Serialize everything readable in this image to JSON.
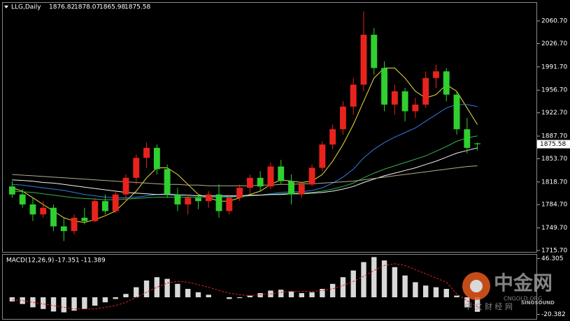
{
  "chart_data": [
    {
      "type": "candlestick",
      "title": "LLG,Daily",
      "open": [
        1812,
        1800,
        1785,
        1770,
        1780,
        1752,
        1745,
        1765,
        1760,
        1790,
        1775,
        1800,
        1825,
        1855,
        1870,
        1838,
        1800,
        1785,
        1795,
        1790,
        1800,
        1775,
        1795,
        1810,
        1825,
        1812,
        1842,
        1820,
        1800,
        1815,
        1840,
        1875,
        1898,
        1932,
        1965,
        2040,
        1990,
        1935,
        1955,
        1925,
        1935,
        1975,
        1985,
        1950,
        1898,
        1876.82
      ],
      "high": [
        1820,
        1808,
        1795,
        1790,
        1785,
        1765,
        1770,
        1780,
        1795,
        1800,
        1805,
        1830,
        1860,
        1878,
        1875,
        1845,
        1810,
        1800,
        1800,
        1805,
        1815,
        1800,
        1815,
        1830,
        1835,
        1848,
        1852,
        1830,
        1820,
        1845,
        1880,
        1905,
        1940,
        1975,
        2075,
        2050,
        2000,
        1965,
        1960,
        1945,
        1985,
        1995,
        1990,
        1955,
        1915,
        1878.07
      ],
      "low": [
        1795,
        1780,
        1760,
        1765,
        1745,
        1730,
        1740,
        1755,
        1758,
        1770,
        1772,
        1790,
        1815,
        1840,
        1830,
        1795,
        1775,
        1770,
        1778,
        1780,
        1765,
        1770,
        1790,
        1800,
        1805,
        1808,
        1815,
        1785,
        1795,
        1812,
        1835,
        1868,
        1890,
        1920,
        1955,
        1980,
        1925,
        1920,
        1910,
        1915,
        1930,
        1960,
        1940,
        1890,
        1862,
        1865.98
      ],
      "close": [
        1800,
        1785,
        1770,
        1780,
        1752,
        1745,
        1765,
        1760,
        1790,
        1775,
        1800,
        1825,
        1855,
        1870,
        1838,
        1800,
        1785,
        1795,
        1790,
        1800,
        1775,
        1795,
        1810,
        1825,
        1812,
        1842,
        1820,
        1800,
        1815,
        1840,
        1875,
        1898,
        1932,
        1965,
        2040,
        1990,
        1935,
        1955,
        1925,
        1935,
        1975,
        1985,
        1950,
        1898,
        1870,
        1875.58
      ],
      "up_color": "#e8231d",
      "down_color": "#2fd02f",
      "series": [
        {
          "color": "#f2e23a",
          "values": [
            1810,
            1805,
            1795,
            1785,
            1775,
            1765,
            1760,
            1758,
            1762,
            1768,
            1775,
            1790,
            1805,
            1825,
            1840,
            1840,
            1830,
            1815,
            1800,
            1795,
            1790,
            1790,
            1795,
            1800,
            1805,
            1815,
            1822,
            1820,
            1818,
            1820,
            1830,
            1850,
            1875,
            1905,
            1940,
            1975,
            1990,
            1990,
            1975,
            1955,
            1945,
            1950,
            1965,
            1955,
            1930,
            1905
          ]
        },
        {
          "color": "#2f7ee0",
          "values": [
            1815,
            1814,
            1812,
            1810,
            1808,
            1806,
            1803,
            1800,
            1798,
            1796,
            1795,
            1795,
            1796,
            1798,
            1800,
            1801,
            1800,
            1799,
            1798,
            1797,
            1796,
            1796,
            1797,
            1798,
            1799,
            1801,
            1803,
            1804,
            1804,
            1806,
            1810,
            1817,
            1826,
            1838,
            1855,
            1868,
            1878,
            1886,
            1893,
            1900,
            1910,
            1920,
            1930,
            1935,
            1935,
            1932
          ]
        },
        {
          "color": "#36b24c",
          "values": [
            1805,
            1804,
            1803,
            1801,
            1799,
            1797,
            1795,
            1794,
            1793,
            1792,
            1792,
            1793,
            1794,
            1795,
            1796,
            1796,
            1796,
            1796,
            1796,
            1796,
            1796,
            1797,
            1797,
            1798,
            1799,
            1800,
            1801,
            1802,
            1802,
            1803,
            1805,
            1808,
            1812,
            1817,
            1825,
            1832,
            1838,
            1843,
            1848,
            1853,
            1858,
            1865,
            1872,
            1880,
            1885,
            1888
          ]
        },
        {
          "color": "#f4f4f4",
          "values": [
            1822,
            1821,
            1820,
            1818,
            1817,
            1815,
            1813,
            1811,
            1809,
            1807,
            1805,
            1803,
            1802,
            1801,
            1800,
            1800,
            1799,
            1799,
            1798,
            1798,
            1798,
            1798,
            1798,
            1799,
            1799,
            1800,
            1800,
            1801,
            1801,
            1802,
            1803,
            1805,
            1808,
            1812,
            1818,
            1823,
            1828,
            1832,
            1836,
            1840,
            1845,
            1850,
            1856,
            1862,
            1866,
            1870
          ]
        },
        {
          "color": "#b9ac8c",
          "values": [
            1830,
            1829,
            1828,
            1827,
            1826,
            1825,
            1824,
            1823,
            1822,
            1821,
            1820,
            1819,
            1818,
            1817,
            1816,
            1815,
            1815,
            1814,
            1814,
            1813,
            1813,
            1813,
            1813,
            1813,
            1814,
            1814,
            1815,
            1815,
            1816,
            1816,
            1817,
            1818,
            1819,
            1820,
            1822,
            1824,
            1826,
            1828,
            1830,
            1832,
            1834,
            1836,
            1838,
            1840,
            1842,
            1843
          ]
        }
      ],
      "ylim": [
        1712.6,
        2088.0
      ],
      "yticks": [
        {
          "value": 2060.7,
          "label": "2060.70"
        },
        {
          "value": 2026.7,
          "label": "2026.70"
        },
        {
          "value": 1991.7,
          "label": "1991.70"
        },
        {
          "value": 1956.7,
          "label": "1956.70"
        },
        {
          "value": 1922.7,
          "label": "1922.70"
        },
        {
          "value": 1887.7,
          "label": "1887.70"
        },
        {
          "value": 1853.7,
          "label": "1853.70"
        },
        {
          "value": 1818.7,
          "label": "1818.70"
        },
        {
          "value": 1784.7,
          "label": "1784.70"
        },
        {
          "value": 1749.7,
          "label": "1749.70"
        },
        {
          "value": 1715.7,
          "label": "1715.70"
        }
      ],
      "watermark": {
        "logo": "中金网",
        "url": "CNGOLD.ORG",
        "tagline": "中 文 财 经 网",
        "brand": "SINOSOUND"
      }
    },
    {
      "type": "macd",
      "title": "MACD(12,26,9)",
      "histogram": [
        -5,
        -8,
        -12,
        -14,
        -17,
        -18,
        -16,
        -14,
        -10,
        -6,
        -2,
        4,
        12,
        20,
        24,
        22,
        16,
        10,
        6,
        3,
        0,
        -2,
        -1,
        2,
        5,
        8,
        9,
        7,
        5,
        6,
        10,
        16,
        24,
        32,
        42,
        48,
        44,
        36,
        26,
        18,
        14,
        12,
        10,
        2,
        -12,
        -17.351
      ],
      "signal": [
        -3,
        -4,
        -6,
        -8,
        -10,
        -12,
        -14,
        -14,
        -14,
        -12,
        -10,
        -6,
        0,
        6,
        12,
        17,
        19,
        18,
        15,
        12,
        8,
        5,
        3,
        2,
        3,
        4,
        6,
        7,
        7,
        7,
        8,
        10,
        14,
        19,
        25,
        32,
        38,
        40,
        38,
        33,
        28,
        23,
        18,
        4,
        -4,
        -11.389
      ],
      "hist_color": "#d8d8d8",
      "signal_color": "#e02020",
      "ylim": [
        -25,
        50
      ],
      "yticks": [
        46.305,
        -20.382
      ]
    }
  ]
}
